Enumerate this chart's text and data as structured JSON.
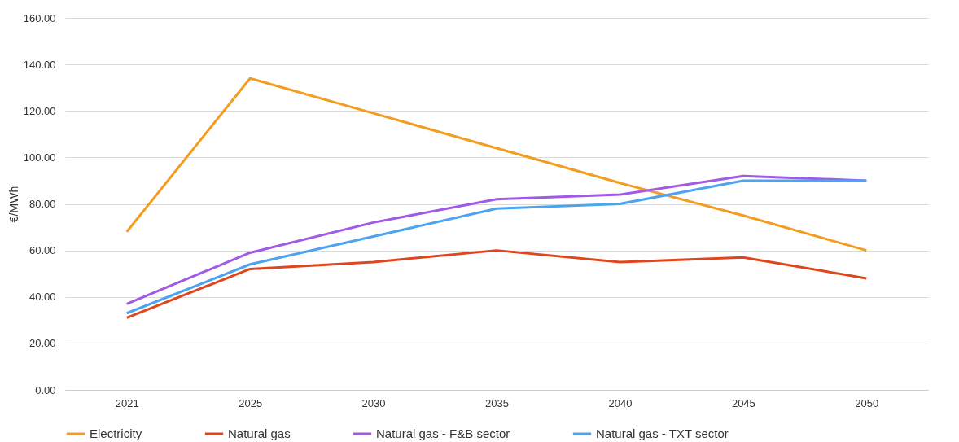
{
  "chart_data": {
    "type": "line",
    "ylabel": "€/MWh",
    "categories": [
      "2021",
      "2025",
      "2030",
      "2035",
      "2040",
      "2045",
      "2050"
    ],
    "series": [
      {
        "name": "Electricity",
        "color": "#f39c1f",
        "values": [
          68,
          134,
          119,
          104,
          89,
          75,
          60
        ]
      },
      {
        "name": "Natural gas",
        "color": "#e0461e",
        "values": [
          31,
          52,
          55,
          60,
          55,
          57,
          48
        ]
      },
      {
        "name": "Natural gas - F&B sector",
        "color": "#a259e6",
        "values": [
          37,
          59,
          72,
          82,
          84,
          92,
          90
        ]
      },
      {
        "name": "Natural gas - TXT sector",
        "color": "#4da3f0",
        "values": [
          33,
          54,
          66,
          78,
          80,
          90,
          90
        ]
      }
    ],
    "ylim": [
      0,
      160
    ],
    "yticks": [
      {
        "value": 0,
        "label": "0.00"
      },
      {
        "value": 20,
        "label": "20.00"
      },
      {
        "value": 40,
        "label": "40.00"
      },
      {
        "value": 60,
        "label": "60.00"
      },
      {
        "value": 80,
        "label": "80.00"
      },
      {
        "value": 100,
        "label": "100.00"
      },
      {
        "value": 120,
        "label": "120.00"
      },
      {
        "value": 140,
        "label": "140.00"
      },
      {
        "value": 160,
        "label": "160.00"
      }
    ],
    "grid": "y",
    "legend": "bottom",
    "marker": "none",
    "line_style": "solid"
  }
}
